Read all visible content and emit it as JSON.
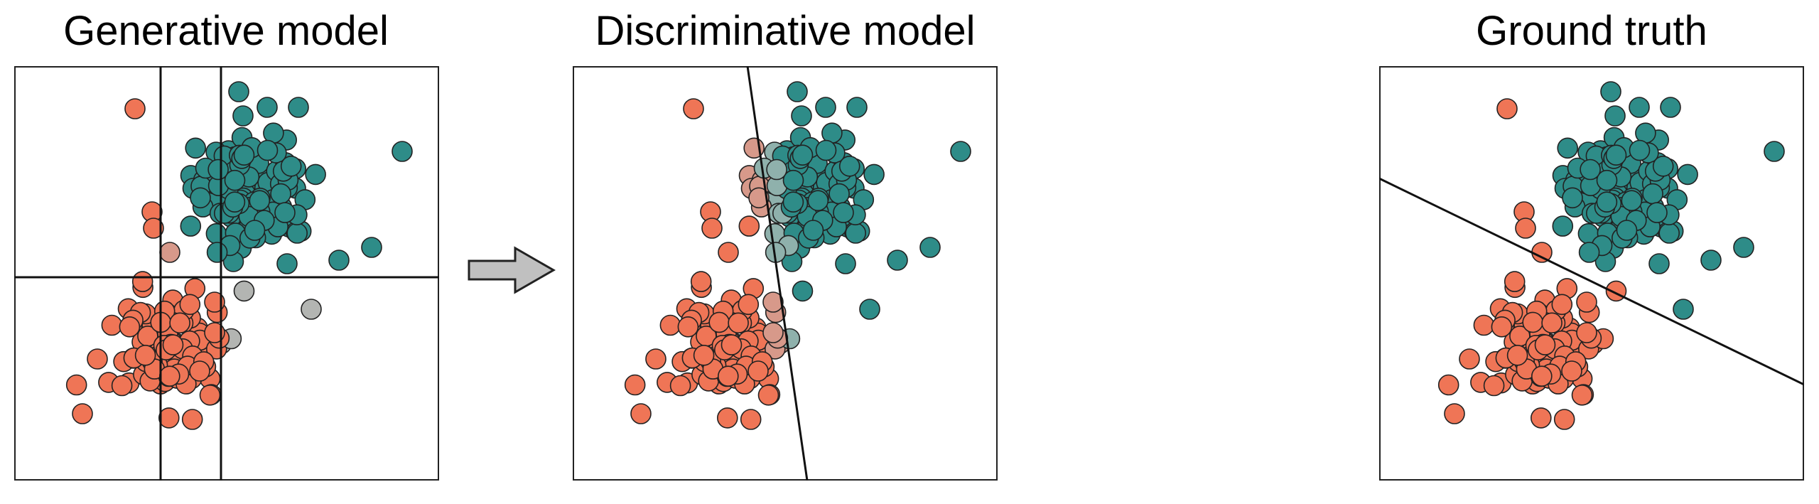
{
  "titles": {
    "generative": "Generative model",
    "discriminative": "Discriminative model",
    "ground_truth": "Ground truth"
  },
  "colors": {
    "class_a": "#ef7556",
    "class_a_light": "#d7998a",
    "class_b": "#2e8c88",
    "class_b_light": "#8fb1ac",
    "uncertain": "#b3b5b2",
    "stroke": "#222222",
    "arrow_fill": "#c0c0c0"
  },
  "icons": {
    "arrow": "right-arrow-icon"
  }
}
